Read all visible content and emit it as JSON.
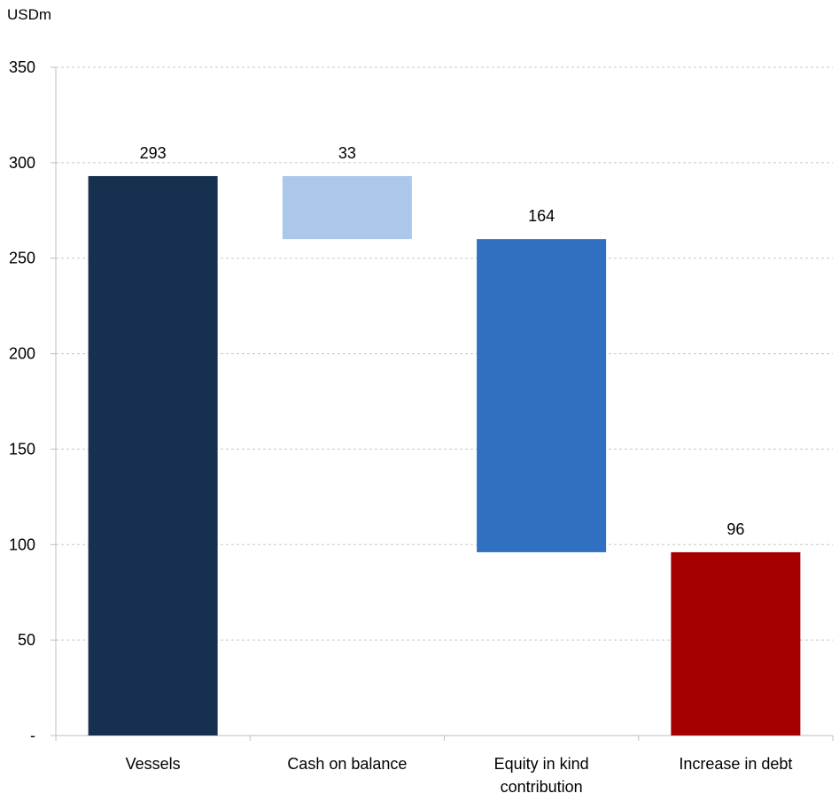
{
  "chart_data": {
    "type": "bar",
    "subtype": "waterfall",
    "title": "",
    "unit_label": "USDm",
    "ylim": [
      0,
      350
    ],
    "y_ticks": [
      {
        "value": 0,
        "label": "-"
      },
      {
        "value": 50,
        "label": "50"
      },
      {
        "value": 100,
        "label": "100"
      },
      {
        "value": 150,
        "label": "150"
      },
      {
        "value": 200,
        "label": "200"
      },
      {
        "value": 250,
        "label": "250"
      },
      {
        "value": 300,
        "label": "300"
      },
      {
        "value": 350,
        "label": "350"
      }
    ],
    "grid": true,
    "categories": [
      [
        "Vessels"
      ],
      [
        "Cash on balance"
      ],
      [
        "Equity in kind",
        "contribution"
      ],
      [
        "Increase in debt"
      ]
    ],
    "bars": [
      {
        "base": 0,
        "top": 293,
        "label": "293",
        "color": "#17304f"
      },
      {
        "base": 260,
        "top": 293,
        "label": "33",
        "color": "#abc8ea"
      },
      {
        "base": 96,
        "top": 260,
        "label": "164",
        "color": "#3070c0"
      },
      {
        "base": 0,
        "top": 96,
        "label": "96",
        "color": "#a50000"
      }
    ]
  }
}
